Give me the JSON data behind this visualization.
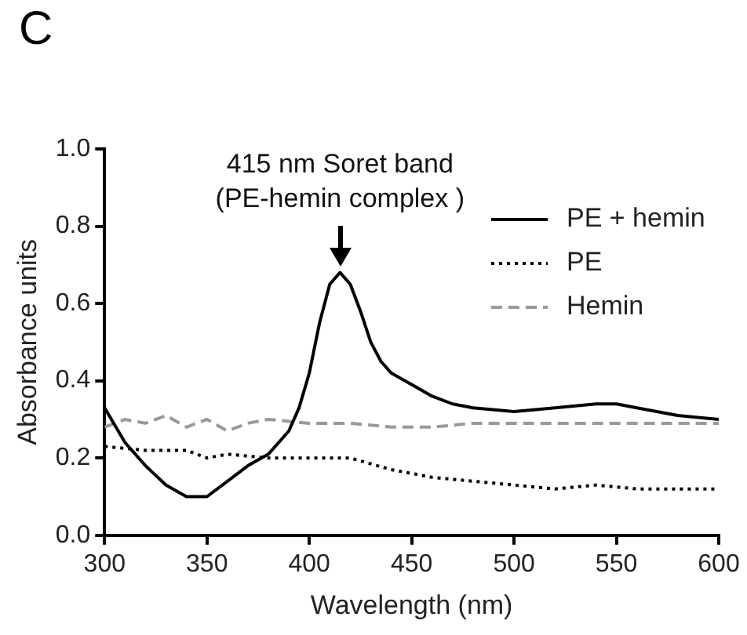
{
  "chart_data": {
    "type": "line",
    "title": "C",
    "xlabel": "Wavelength (nm)",
    "ylabel": "Absorbance units",
    "xlim": [
      300,
      600
    ],
    "xticks": [
      300,
      350,
      400,
      450,
      500,
      550,
      600
    ],
    "ylim": [
      0,
      1
    ],
    "yticks": [
      {
        "value": 0,
        "label": "0.0"
      },
      {
        "value": 0.2,
        "label": "0.2"
      },
      {
        "value": 0.4,
        "label": "0.4"
      },
      {
        "value": 0.6,
        "label": "0.6"
      },
      {
        "value": 0.8,
        "label": "0.8"
      },
      {
        "value": 1,
        "label": "1.0"
      }
    ],
    "grid": false,
    "legend": "top right",
    "marker": "none",
    "annotations": [
      {
        "text": "415 nm Soret band\n(PE-hemin complex )",
        "x": 415,
        "y": 0.68
      }
    ],
    "series": [
      {
        "name": "PE + hemin",
        "color": "#000000",
        "line_style": "solid",
        "x": [
          300,
          310,
          320,
          330,
          340,
          350,
          360,
          370,
          380,
          390,
          395,
          400,
          405,
          410,
          415,
          420,
          425,
          430,
          435,
          440,
          450,
          460,
          470,
          480,
          500,
          520,
          540,
          550,
          560,
          580,
          600
        ],
        "values": [
          0.33,
          0.24,
          0.18,
          0.13,
          0.1,
          0.1,
          0.14,
          0.18,
          0.21,
          0.27,
          0.33,
          0.42,
          0.55,
          0.65,
          0.68,
          0.65,
          0.58,
          0.5,
          0.45,
          0.42,
          0.39,
          0.36,
          0.34,
          0.33,
          0.32,
          0.33,
          0.34,
          0.34,
          0.33,
          0.31,
          0.3
        ]
      },
      {
        "name": "PE",
        "color": "#000000",
        "line_style": "dotted",
        "x": [
          300,
          320,
          340,
          350,
          360,
          380,
          400,
          420,
          440,
          460,
          480,
          500,
          520,
          540,
          560,
          580,
          600
        ],
        "values": [
          0.23,
          0.22,
          0.22,
          0.2,
          0.21,
          0.2,
          0.2,
          0.2,
          0.17,
          0.15,
          0.14,
          0.13,
          0.12,
          0.13,
          0.12,
          0.12,
          0.12
        ]
      },
      {
        "name": "Hemin",
        "color": "#999999",
        "line_style": "dashed",
        "x": [
          300,
          310,
          320,
          330,
          340,
          350,
          360,
          370,
          380,
          400,
          420,
          440,
          460,
          480,
          500,
          520,
          540,
          560,
          580,
          600
        ],
        "values": [
          0.28,
          0.3,
          0.29,
          0.31,
          0.28,
          0.3,
          0.27,
          0.29,
          0.3,
          0.29,
          0.29,
          0.28,
          0.28,
          0.29,
          0.29,
          0.29,
          0.29,
          0.29,
          0.29,
          0.29
        ]
      }
    ]
  }
}
